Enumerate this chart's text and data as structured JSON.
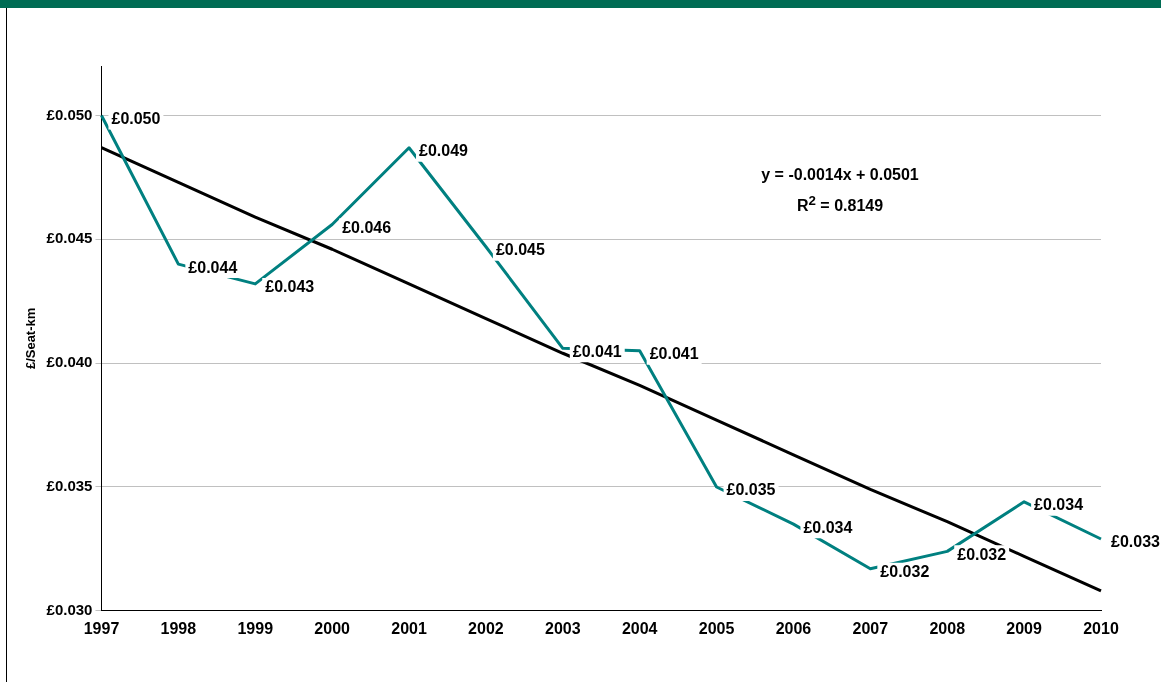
{
  "chart_data": {
    "type": "line",
    "ylabel": "£/Seat-km",
    "categories": [
      "1997",
      "1998",
      "1999",
      "2000",
      "2001",
      "2002",
      "2003",
      "2004",
      "2005",
      "2006",
      "2007",
      "2008",
      "2009",
      "2010"
    ],
    "series": [
      {
        "color": "#008080",
        "values": [
          0.05,
          0.044,
          0.0432,
          0.0456,
          0.0487,
          0.0447,
          0.0406,
          0.0405,
          0.035,
          0.0335,
          0.0317,
          0.0324,
          0.0344,
          0.0329
        ],
        "value_labels": [
          "£0.050",
          "£0.044",
          "£0.043",
          "£0.046",
          "£0.049",
          "£0.045",
          "£0.041",
          "£0.041",
          "£0.035",
          "£0.034",
          "£0.032",
          "£0.032",
          "£0.034",
          "£0.033"
        ]
      },
      {
        "color": "#000000",
        "values": [
          0.0487,
          0.0473,
          0.0459,
          0.0446,
          0.0432,
          0.0418,
          0.0404,
          0.0391,
          0.0377,
          0.0363,
          0.0349,
          0.0336,
          0.0322,
          0.0308
        ]
      }
    ],
    "ylim": [
      0.03,
      0.052
    ],
    "yticks": [
      {
        "value": 0.03,
        "label": "£0.030"
      },
      {
        "value": 0.035,
        "label": "£0.035"
      },
      {
        "value": 0.04,
        "label": "£0.040"
      },
      {
        "value": 0.045,
        "label": "£0.045"
      },
      {
        "value": 0.05,
        "label": "£0.050"
      }
    ],
    "grid": "y",
    "legend": false,
    "marker": "none",
    "annotations": [
      "y = -0.0014x + 0.0501",
      "R$^{2}$ = 0.8149"
    ]
  }
}
